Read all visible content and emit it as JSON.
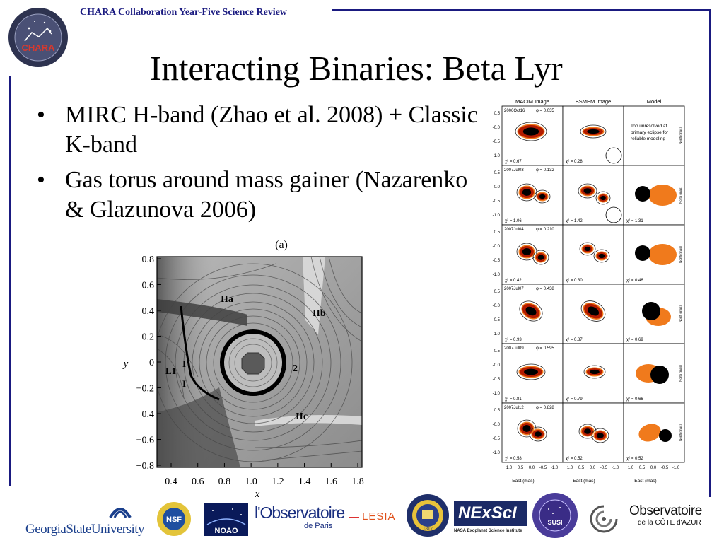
{
  "header": {
    "text": "CHARA Collaboration Year-Five Science Review"
  },
  "logo": {
    "text": "CHARA"
  },
  "slide": {
    "title": "Interacting Binaries: Beta Lyr",
    "bullets": [
      "MIRC H-band (Zhao et al. 2008) + Classic K-band",
      "Gas torus around mass gainer (Nazarenko & Glazunova 2006)"
    ]
  },
  "figure_a": {
    "panel_label": "(a)",
    "xlabel": "x",
    "ylabel": "y",
    "xticks": [
      "0.4",
      "0.6",
      "0.8",
      "1.0",
      "1.2",
      "1.4",
      "1.6",
      "1.8"
    ],
    "yticks": [
      "0.8",
      "0.6",
      "0.4",
      "0.2",
      "0",
      "−0.2",
      "−0.4",
      "−0.6",
      "−0.8"
    ],
    "annotations": [
      "IIa",
      "IIb",
      "IIc",
      "I",
      "I",
      "L1",
      "2"
    ]
  },
  "figure_b": {
    "columns": [
      "MACIM Image",
      "BSMEM Image",
      "Model"
    ],
    "rows": [
      {
        "date": "2006Oct16",
        "phase": "φ = 0.035",
        "chi_macim": "χ² = 0.67",
        "chi_bsmem": "χ² = 0.28",
        "chi_model": ""
      },
      {
        "date": "2007Jul03",
        "phase": "φ = 0.132",
        "chi_macim": "χ² = 1.06",
        "chi_bsmem": "χ² = 1.42",
        "chi_model": "χ² = 1.31"
      },
      {
        "date": "2007Jul04",
        "phase": "φ = 0.210",
        "chi_macim": "χ² = 0.42",
        "chi_bsmem": "χ² = 0.30",
        "chi_model": "χ² = 0.46"
      },
      {
        "date": "2007Jul07",
        "phase": "φ = 0.438",
        "chi_macim": "χ² = 0.93",
        "chi_bsmem": "χ² = 0.87",
        "chi_model": "χ² = 0.69"
      },
      {
        "date": "2007Jul09",
        "phase": "φ = 0.595",
        "chi_macim": "χ² = 0.81",
        "chi_bsmem": "χ² = 0.79",
        "chi_model": "χ² = 0.66"
      },
      {
        "date": "2007Jul12",
        "phase": "φ = 0.828",
        "chi_macim": "χ² = 0.58",
        "chi_bsmem": "χ² = 0.52",
        "chi_model": "χ² = 0.52"
      }
    ],
    "model_note_lines": [
      "Too unresolved at",
      "primary eclipse for",
      "reliable modeling"
    ],
    "xticks": [
      "1.0",
      "0.5",
      "0.0",
      "-0.5",
      "-1.0"
    ],
    "yticks": [
      "0.5",
      "-0.0",
      "-0.5",
      "-1.0"
    ],
    "xlabel": "East (mas)",
    "ylabel": "North (mas)"
  },
  "footer": {
    "gsu": "GeorgiaStateUniversity",
    "nsf": "NSF",
    "noao": "NOAO",
    "obs_paris_main": "l'Observatoire",
    "obs_paris_sub": "de Paris",
    "lesia": "LESIA",
    "michigan": "1817",
    "nexsci": "NExScI",
    "nexsci_sub": "NASA Exoplanet Science Institute",
    "susi": "SUSI",
    "oca_main": "Observatoire",
    "oca_sub": "de la CÔTE d'AZUR"
  },
  "colors": {
    "accent": "#1a1a80",
    "disk_core": "#000000",
    "disk_mid": "#b31b00",
    "disk_outer": "#f07a1c"
  }
}
